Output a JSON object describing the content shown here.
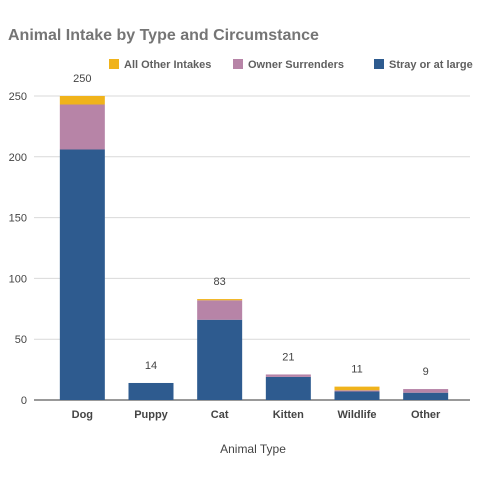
{
  "chart_data": {
    "type": "stacked-bar",
    "title": "Animal Intake by Type and Circumstance",
    "xlabel": "Animal Type",
    "ylabel": "",
    "ylim": [
      0,
      250
    ],
    "yticks": [
      0,
      50,
      100,
      150,
      200,
      250
    ],
    "grid": true,
    "legend_position": "top",
    "categories": [
      "Dog",
      "Puppy",
      "Cat",
      "Kitten",
      "Wildlife",
      "Other"
    ],
    "totals": [
      250,
      14,
      83,
      21,
      11,
      9
    ],
    "series": [
      {
        "name": "Stray or at large",
        "color": "#2e5b8f",
        "values": [
          206,
          14,
          66,
          19,
          7,
          6
        ]
      },
      {
        "name": "Owner Surrenders",
        "color": "#b784a7",
        "values": [
          37,
          0,
          16,
          2,
          1,
          3
        ]
      },
      {
        "name": "All Other Intakes",
        "color": "#f0b31b",
        "values": [
          7,
          0,
          1,
          0,
          3,
          0
        ]
      }
    ]
  }
}
